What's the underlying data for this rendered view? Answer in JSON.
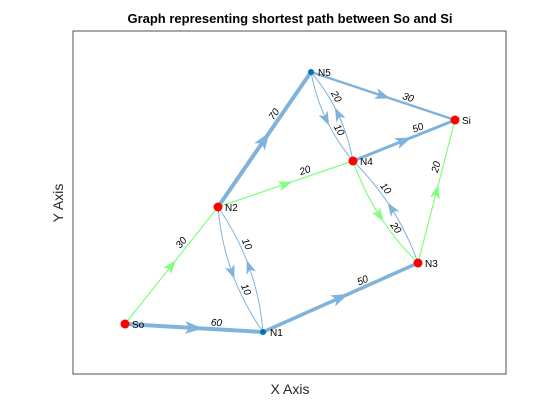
{
  "figure": {
    "title": "Graph representing shortest path between So and Si",
    "xlabel": "X Axis",
    "ylabel": "Y Axis"
  },
  "colors": {
    "default_edge": "#80B3DB",
    "path_edge": "#80FF80",
    "node_default": "#0072BD",
    "node_highlight": "#FF0000",
    "axes": "#262626"
  },
  "nodes": [
    {
      "id": "So",
      "label": "So",
      "highlight": true
    },
    {
      "id": "N1",
      "label": "N1",
      "highlight": false
    },
    {
      "id": "N2",
      "label": "N2",
      "highlight": true
    },
    {
      "id": "N3",
      "label": "N3",
      "highlight": true
    },
    {
      "id": "N4",
      "label": "N4",
      "highlight": true
    },
    {
      "id": "N5",
      "label": "N5",
      "highlight": false
    },
    {
      "id": "Si",
      "label": "Si",
      "highlight": true
    }
  ],
  "edges": [
    {
      "from": "So",
      "to": "N1",
      "weight": "60",
      "path": false
    },
    {
      "from": "So",
      "to": "N2",
      "weight": "30",
      "path": true
    },
    {
      "from": "N2",
      "to": "N5",
      "weight": "70",
      "path": false
    },
    {
      "from": "N2",
      "to": "N4",
      "weight": "20",
      "path": true
    },
    {
      "from": "N2",
      "to": "N1",
      "weight": "10",
      "path": false
    },
    {
      "from": "N1",
      "to": "N2",
      "weight": "10",
      "path": false
    },
    {
      "from": "N1",
      "to": "N3",
      "weight": "50",
      "path": false
    },
    {
      "from": "N5",
      "to": "Si",
      "weight": "30",
      "path": false
    },
    {
      "from": "N5",
      "to": "N4",
      "weight": "10",
      "path": false
    },
    {
      "from": "N4",
      "to": "N5",
      "weight": "20",
      "path": false
    },
    {
      "from": "N4",
      "to": "Si",
      "weight": "50",
      "path": false
    },
    {
      "from": "N4",
      "to": "N3",
      "weight": "20",
      "path": true
    },
    {
      "from": "N3",
      "to": "N4",
      "weight": "10",
      "path": false
    },
    {
      "from": "N3",
      "to": "Si",
      "weight": "20",
      "path": true
    }
  ]
}
